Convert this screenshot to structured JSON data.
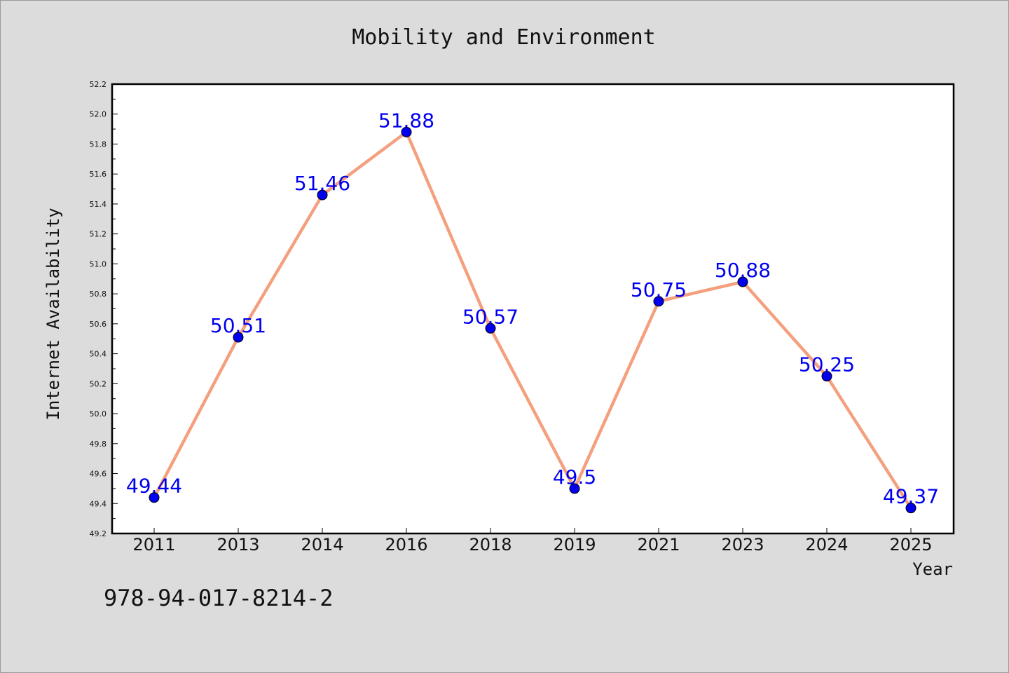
{
  "chart_data": {
    "type": "line",
    "title": "Mobility and Environment",
    "xlabel": "Year",
    "ylabel": "Internet Availability",
    "categories": [
      "2011",
      "2013",
      "2014",
      "2016",
      "2018",
      "2019",
      "2021",
      "2023",
      "2024",
      "2025"
    ],
    "series": [
      {
        "values": [
          49.44,
          50.51,
          51.46,
          51.88,
          50.57,
          49.5,
          50.75,
          50.88,
          50.25,
          49.37
        ],
        "data_labels": [
          "49.44",
          "50.51",
          "51.46",
          "51.88",
          "50.57",
          "49.5",
          "50.75",
          "50.88",
          "50.25",
          "49.37"
        ]
      }
    ],
    "ylim": [
      49.2,
      52.2
    ],
    "yticks": [
      "49.2",
      "49.4",
      "49.6",
      "49.8",
      "50.0",
      "50.2",
      "50.4",
      "50.6",
      "50.8",
      "51.0",
      "51.2",
      "51.4",
      "51.6",
      "51.8",
      "52.0",
      "52.2"
    ],
    "grid": false,
    "legend": "none",
    "colors": {
      "line": "#f4a07f",
      "marker": "#0000ee",
      "data_label": "#0000ee",
      "plot_background": "#ffffff",
      "figure_background": "#dcdcdc"
    }
  },
  "annotation": "978-94-017-8214-2"
}
